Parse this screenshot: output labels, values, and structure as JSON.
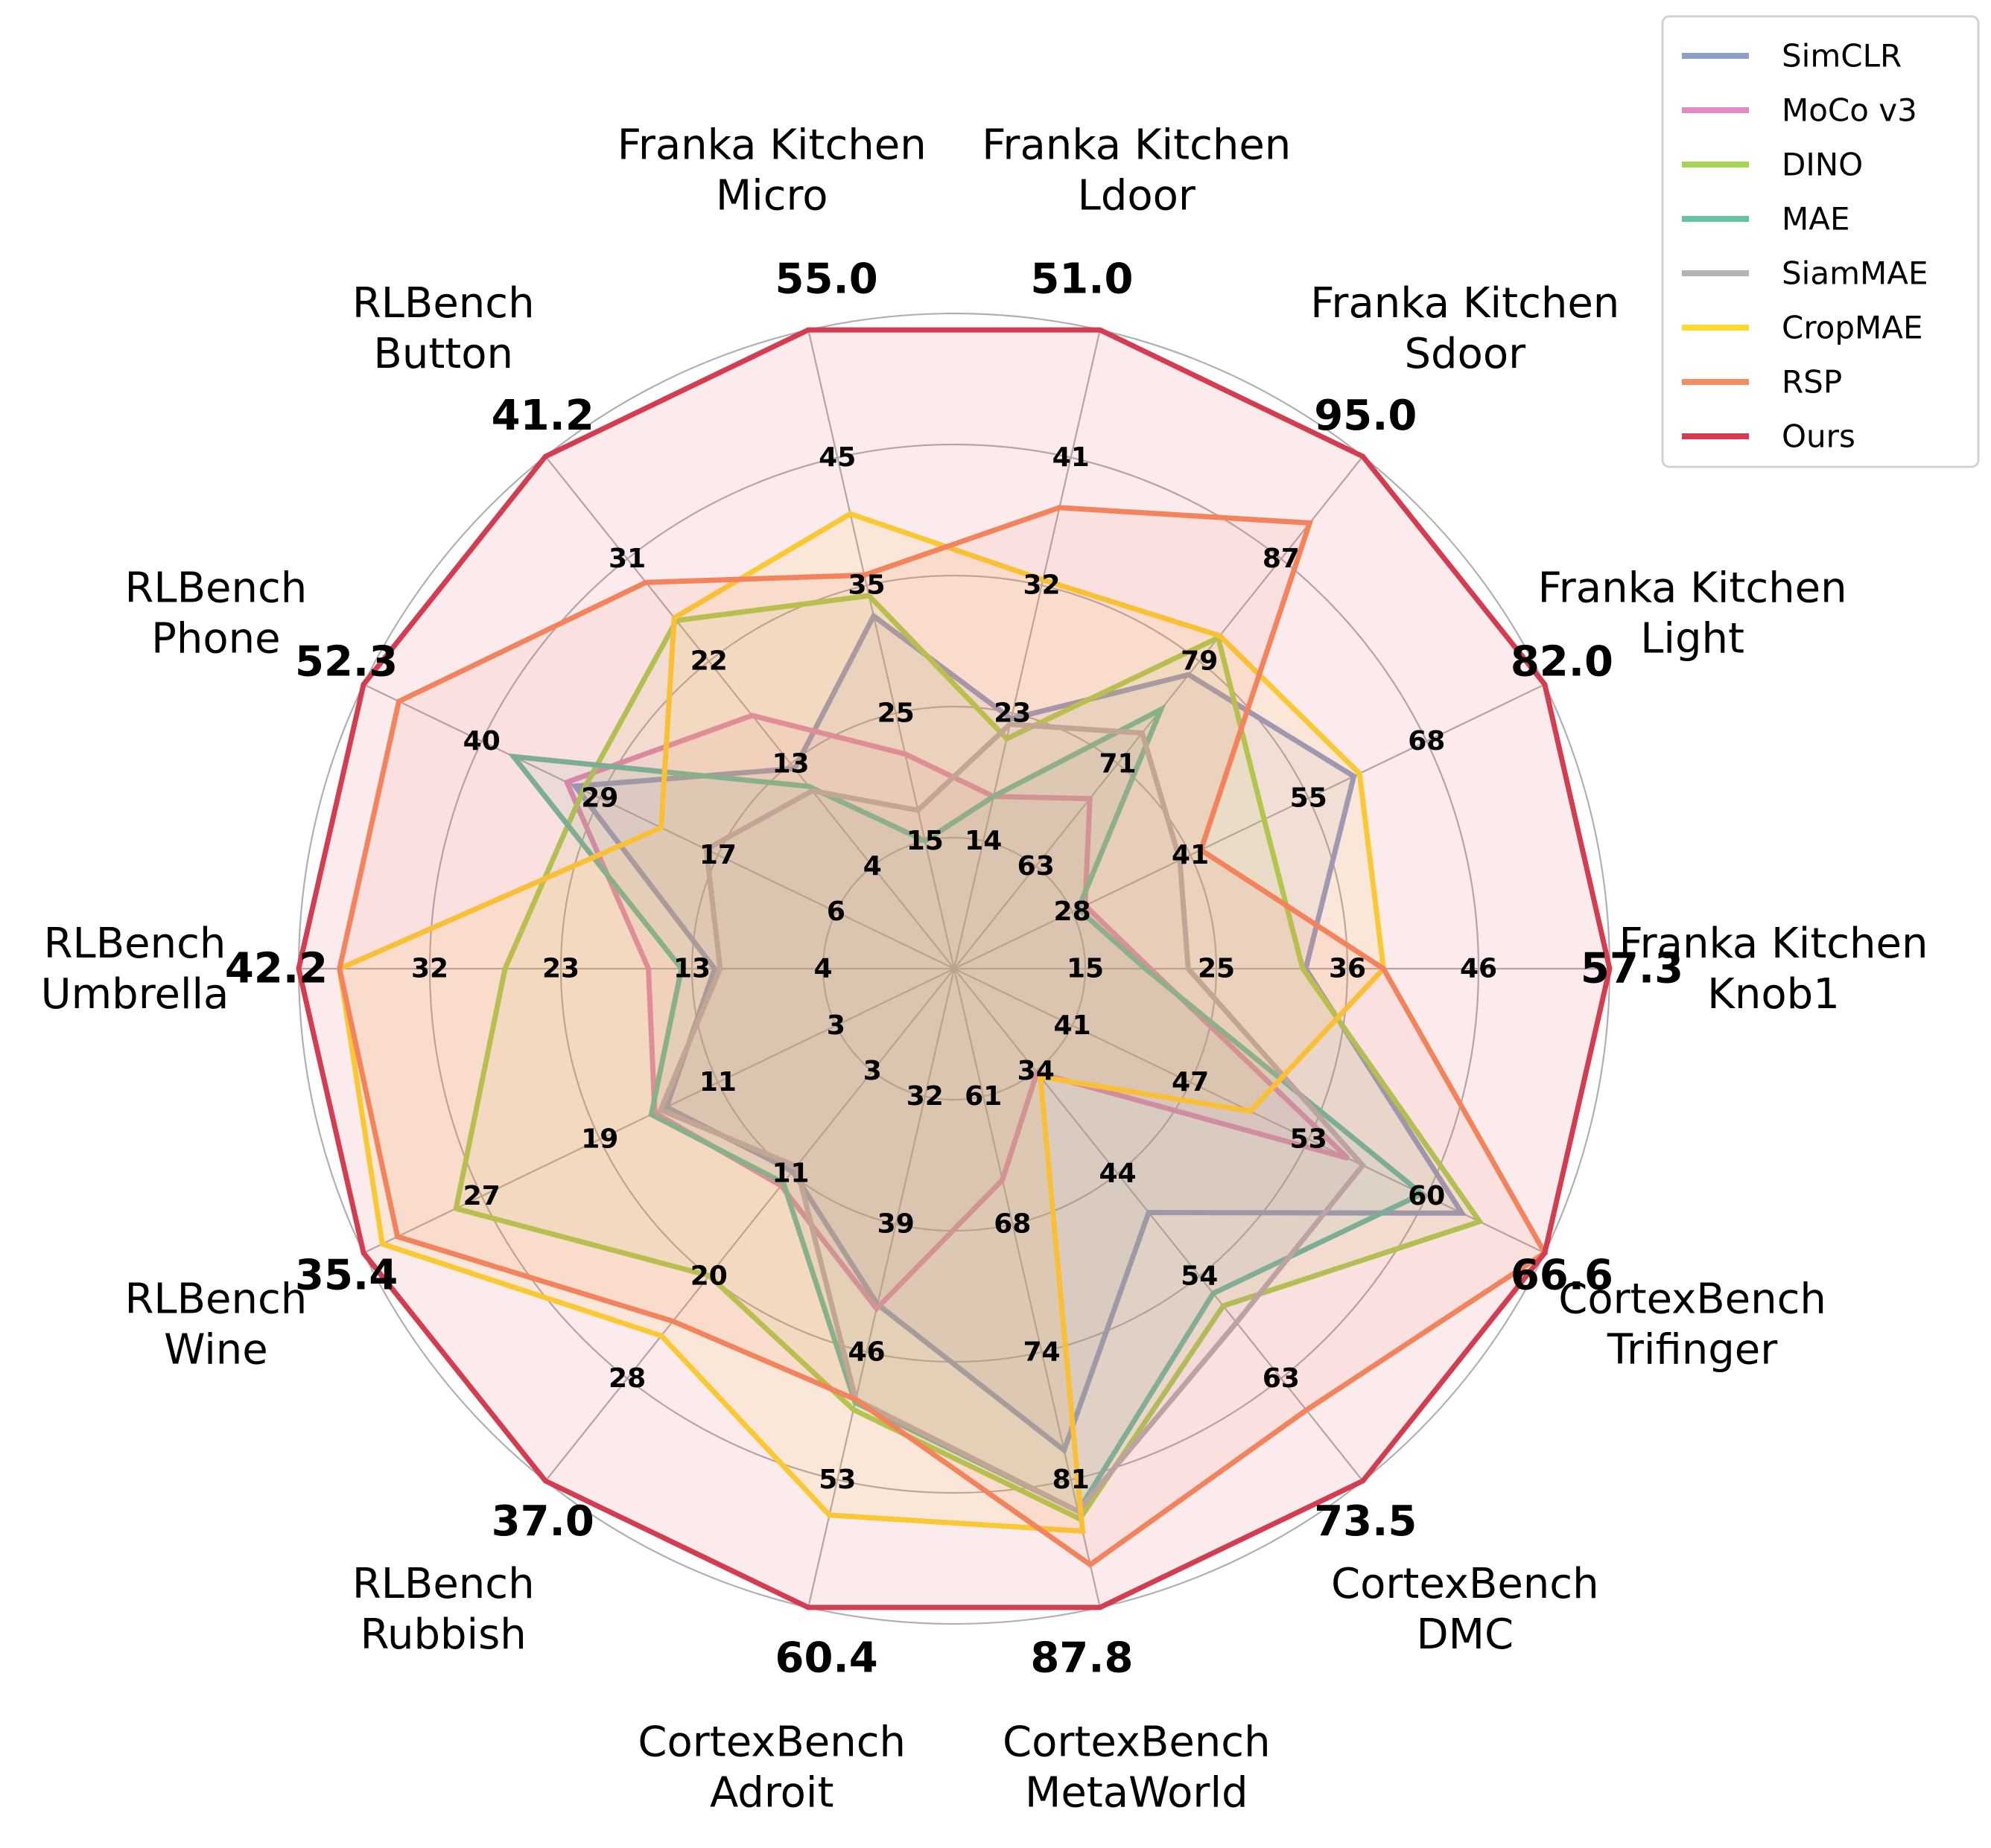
{
  "chart_data": {
    "type": "radar",
    "title": "",
    "legend_position": "top-right",
    "axes": [
      {
        "name": [
          "Franka Kitchen",
          "Knob1"
        ],
        "max_label": "57.3",
        "ticks": [
          "15",
          "25",
          "36",
          "46"
        ]
      },
      {
        "name": [
          "Franka Kitchen",
          "Light"
        ],
        "max_label": "82.0",
        "ticks": [
          "28",
          "41",
          "55",
          "68"
        ]
      },
      {
        "name": [
          "Franka Kitchen",
          "Sdoor"
        ],
        "max_label": "95.0",
        "ticks": [
          "63",
          "71",
          "79",
          "87"
        ]
      },
      {
        "name": [
          "Franka Kitchen",
          "Ldoor"
        ],
        "max_label": "51.0",
        "ticks": [
          "14",
          "23",
          "32",
          "41"
        ]
      },
      {
        "name": [
          "Franka Kitchen",
          "Micro"
        ],
        "max_label": "55.0",
        "ticks": [
          "15",
          "25",
          "35",
          "45"
        ]
      },
      {
        "name": [
          "RLBench",
          "Button"
        ],
        "max_label": "41.2",
        "ticks": [
          "4",
          "13",
          "22",
          "31"
        ]
      },
      {
        "name": [
          "RLBench",
          "Phone"
        ],
        "max_label": "52.3",
        "ticks": [
          "6",
          "17",
          "29",
          "40"
        ]
      },
      {
        "name": [
          "RLBench",
          "Umbrella"
        ],
        "max_label": "42.2",
        "ticks": [
          "4",
          "13",
          "23",
          "32"
        ]
      },
      {
        "name": [
          "RLBench",
          "Wine"
        ],
        "max_label": "35.4",
        "ticks": [
          "3",
          "11",
          "19",
          "27"
        ]
      },
      {
        "name": [
          "RLBench",
          "Rubbish"
        ],
        "max_label": "37.0",
        "ticks": [
          "3",
          "11",
          "20",
          "28"
        ]
      },
      {
        "name": [
          "CortexBench",
          "Adroit"
        ],
        "max_label": "60.4",
        "ticks": [
          "32",
          "39",
          "46",
          "53"
        ]
      },
      {
        "name": [
          "CortexBench",
          "MetaWorld"
        ],
        "max_label": "87.8",
        "ticks": [
          "61",
          "68",
          "74",
          "81"
        ]
      },
      {
        "name": [
          "CortexBench",
          "DMC"
        ],
        "max_label": "73.5",
        "ticks": [
          "34",
          "44",
          "54",
          "63"
        ]
      },
      {
        "name": [
          "CortexBench",
          "Trifinger"
        ],
        "max_label": "66.6",
        "ticks": [
          "41",
          "47",
          "53",
          "60"
        ]
      }
    ],
    "series": [
      {
        "name": "SimCLR",
        "color": "#8d9fcb",
        "values": [
          26.8,
          54.8,
          73.7,
          16.0,
          27.0,
          6.0,
          26.5,
          4.5,
          9.5,
          5.0,
          39.4,
          77.5,
          41.3,
          61.0
        ]
      },
      {
        "name": "MoCo v3",
        "color": "#e18bc2",
        "values": [
          11.2,
          16.5,
          61.6,
          9.0,
          13.5,
          12.0,
          27.5,
          10.5,
          10.5,
          6.5,
          39.7,
          59.8,
          24.5,
          53.3
        ]
      },
      {
        "name": "DINO",
        "color": "#a5d653",
        "values": [
          26.5,
          42.0,
          77.3,
          14.2,
          29.0,
          22.7,
          25.5,
          23.5,
          27.5,
          15.8,
          46.7,
          82.0,
          52.5,
          62.2
        ]
      },
      {
        "name": "MAE",
        "color": "#65c2a4",
        "values": [
          10.7,
          15.5,
          70.3,
          9.0,
          5.0,
          4.0,
          34.0,
          7.5,
          10.8,
          6.2,
          46.2,
          81.5,
          51.0,
          58.3
        ]
      },
      {
        "name": "SiamMAE",
        "color": "#b3b3b3",
        "values": [
          15.0,
          30.0,
          68.0,
          15.5,
          8.0,
          3.5,
          10.5,
          4.0,
          10.0,
          4.5,
          46.0,
          81.5,
          54.5,
          54.3
        ]
      },
      {
        "name": "CropMAE",
        "color": "#fed930",
        "values": [
          34.6,
          55.6,
          77.5,
          28.5,
          37.0,
          23.0,
          16.0,
          38.5,
          33.8,
          22.0,
          54.0,
          82.8,
          25.0,
          46.7
        ]
      },
      {
        "name": "RSP",
        "color": "#f58c5e",
        "values": [
          34.6,
          33.0,
          88.5,
          35.0,
          31.0,
          27.0,
          48.0,
          38.5,
          32.5,
          20.5,
          46.0,
          85.0,
          65.0,
          66.6
        ]
      },
      {
        "name": "Ours",
        "color": "#d33d4f",
        "values": [
          57.3,
          82.0,
          95.0,
          51.0,
          55.0,
          41.2,
          52.3,
          42.2,
          35.4,
          37.0,
          60.4,
          87.8,
          73.5,
          66.6
        ]
      }
    ]
  }
}
